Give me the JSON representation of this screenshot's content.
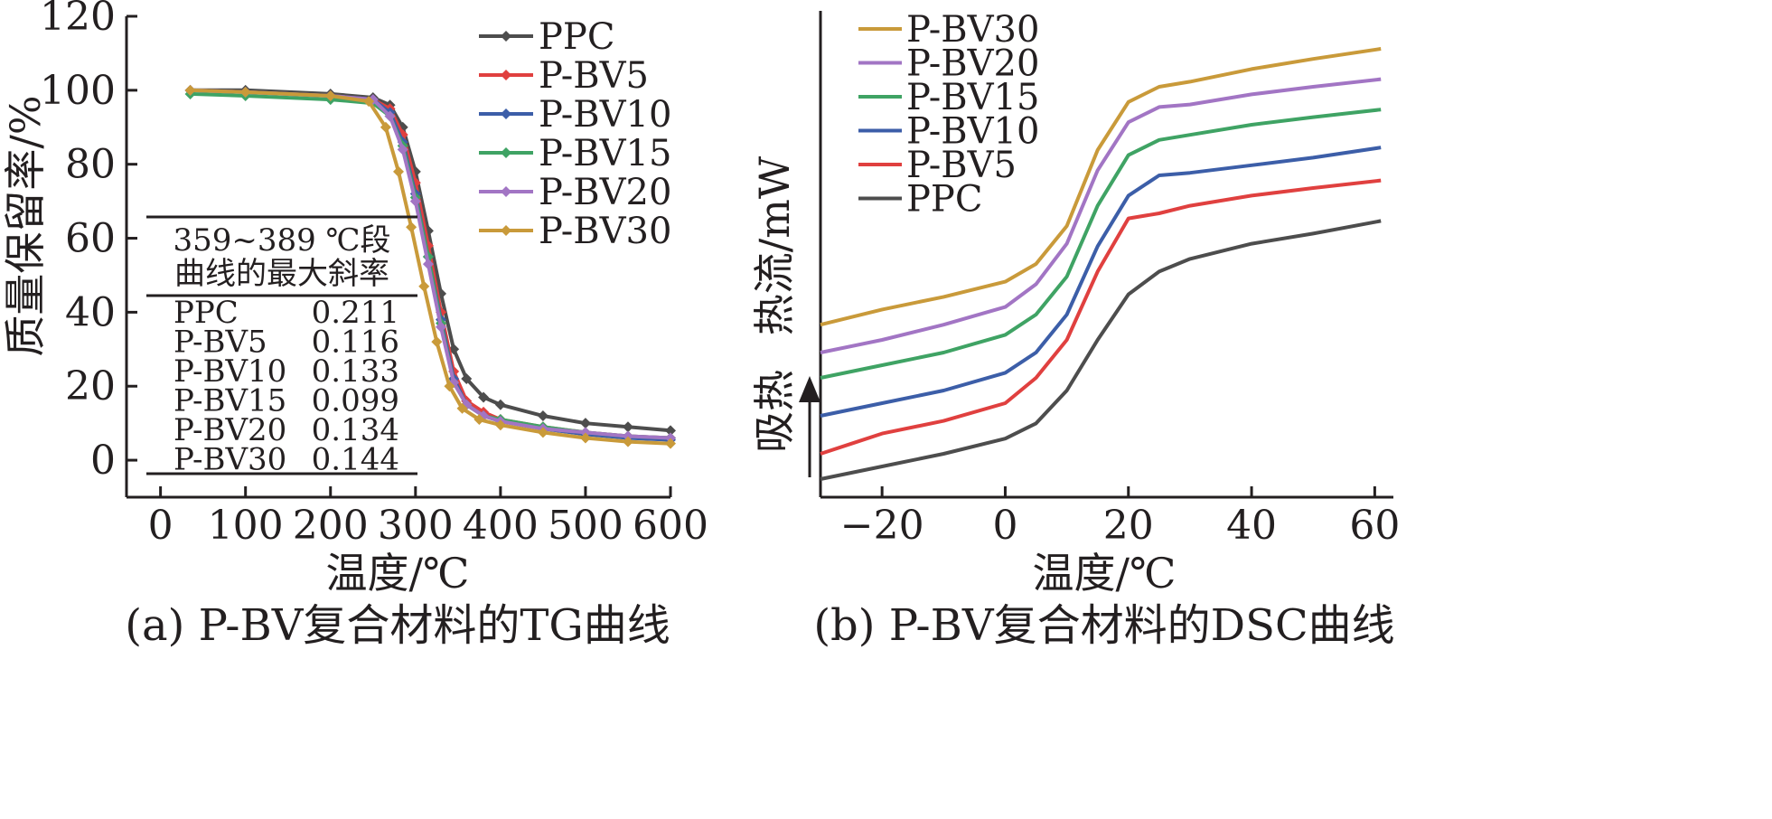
{
  "chart_data": [
    {
      "type": "line",
      "caption": "(a) P-BV复合材料的TG曲线",
      "xlabel": "温度/℃",
      "ylabel": "质量保留率/%",
      "xlim": [
        -40,
        600
      ],
      "ylim": [
        -10,
        120
      ],
      "xticks": [
        0,
        100,
        200,
        300,
        400,
        500,
        600
      ],
      "yticks": [
        0,
        20,
        40,
        60,
        80,
        100,
        120
      ],
      "legend_position": "top-right",
      "series": [
        {
          "name": "PPC",
          "color": "#4d4d4d",
          "x": [
            35,
            100,
            200,
            250,
            270,
            285,
            300,
            315,
            330,
            345,
            360,
            380,
            400,
            450,
            500,
            550,
            600
          ],
          "y": [
            100,
            100,
            99,
            98,
            96,
            90,
            78,
            62,
            45,
            30,
            22,
            17,
            15,
            12,
            10,
            9,
            8
          ]
        },
        {
          "name": "P-BV5",
          "color": "#e0403f",
          "x": [
            35,
            100,
            200,
            250,
            270,
            285,
            300,
            315,
            330,
            345,
            360,
            380,
            400,
            450,
            500,
            550,
            600
          ],
          "y": [
            100,
            99.5,
            98.5,
            97.5,
            95,
            88,
            75,
            58,
            40,
            24,
            16,
            13,
            11,
            9,
            7.5,
            6.5,
            6
          ]
        },
        {
          "name": "P-BV10",
          "color": "#3c5ea8",
          "x": [
            35,
            100,
            200,
            250,
            270,
            285,
            300,
            315,
            330,
            345,
            360,
            380,
            400,
            450,
            500,
            550,
            600
          ],
          "y": [
            100,
            99.5,
            98.5,
            97.5,
            94,
            86,
            72,
            55,
            38,
            22,
            15,
            12,
            10.5,
            8.5,
            7,
            6,
            5.5
          ]
        },
        {
          "name": "P-BV15",
          "color": "#3fa364",
          "x": [
            35,
            100,
            200,
            250,
            270,
            285,
            300,
            315,
            330,
            345,
            360,
            380,
            400,
            450,
            500,
            550,
            600
          ],
          "y": [
            99,
            98.5,
            97.5,
            96.5,
            93,
            85,
            71,
            55,
            37,
            21,
            15,
            12,
            11,
            9,
            7.5,
            6.5,
            6
          ]
        },
        {
          "name": "P-BV20",
          "color": "#a275c4",
          "x": [
            35,
            100,
            200,
            250,
            270,
            285,
            300,
            315,
            330,
            345,
            360,
            380,
            400,
            450,
            500,
            550,
            600
          ],
          "y": [
            100,
            99.5,
            98.5,
            97.5,
            93,
            84,
            70,
            53,
            36,
            21,
            15,
            12,
            10.5,
            8.5,
            7.5,
            6.5,
            6
          ]
        },
        {
          "name": "P-BV30",
          "color": "#c99a3a",
          "x": [
            35,
            100,
            200,
            245,
            265,
            280,
            295,
            310,
            325,
            340,
            355,
            375,
            400,
            450,
            500,
            550,
            600
          ],
          "y": [
            100,
            99.5,
            98.5,
            97,
            90,
            78,
            63,
            47,
            32,
            20,
            14,
            11,
            9.5,
            7.5,
            6,
            5,
            4.5
          ]
        }
      ],
      "inset_table": {
        "title_line1": "359~389 ℃段",
        "title_line2": "曲线的最大斜率",
        "rows": [
          {
            "name": "PPC",
            "value": "0.211"
          },
          {
            "name": "P-BV5",
            "value": "0.116"
          },
          {
            "name": "P-BV10",
            "value": "0.133"
          },
          {
            "name": "P-BV15",
            "value": "0.099"
          },
          {
            "name": "P-BV20",
            "value": "0.134"
          },
          {
            "name": "P-BV30",
            "value": "0.144"
          }
        ]
      }
    },
    {
      "type": "line",
      "caption": "(b) P-BV复合材料的DSC曲线",
      "xlabel": "温度/℃",
      "ylabel": "热流/mW",
      "ylabel_note": "吸热",
      "xlim": [
        -30,
        62
      ],
      "xticks": [
        -20,
        0,
        20,
        40,
        60
      ],
      "y_ticks_shown": false,
      "legend_position": "top-left",
      "legend_order": [
        "P-BV30",
        "P-BV20",
        "P-BV15",
        "P-BV10",
        "P-BV5",
        "PPC"
      ],
      "series": [
        {
          "name": "PPC",
          "color": "#4d4d4d",
          "x": [
            -30,
            -20,
            -10,
            0,
            5,
            10,
            15,
            20,
            25,
            30,
            40,
            50,
            61
          ],
          "y": [
            0,
            5,
            10,
            16,
            22,
            35,
            55,
            73,
            82,
            87,
            93,
            97,
            102
          ]
        },
        {
          "name": "P-BV5",
          "color": "#e0403f",
          "x": [
            -30,
            -25,
            -20,
            -10,
            0,
            5,
            10,
            15,
            20,
            25,
            30,
            40,
            50,
            61
          ],
          "y": [
            10,
            14,
            18,
            23,
            30,
            40,
            55,
            82,
            103,
            105,
            108,
            112,
            115,
            118
          ]
        },
        {
          "name": "P-BV10",
          "color": "#3c5ea8",
          "x": [
            -30,
            -20,
            -10,
            0,
            5,
            10,
            15,
            20,
            25,
            30,
            40,
            50,
            61
          ],
          "y": [
            25,
            30,
            35,
            42,
            50,
            65,
            92,
            112,
            120,
            121,
            124,
            127,
            131
          ]
        },
        {
          "name": "P-BV15",
          "color": "#3fa364",
          "x": [
            -30,
            -20,
            -10,
            0,
            5,
            10,
            15,
            20,
            25,
            30,
            40,
            50,
            61
          ],
          "y": [
            40,
            45,
            50,
            57,
            65,
            80,
            108,
            128,
            134,
            136,
            140,
            143,
            146
          ]
        },
        {
          "name": "P-BV20",
          "color": "#a275c4",
          "x": [
            -30,
            -20,
            -10,
            0,
            5,
            10,
            15,
            20,
            25,
            30,
            40,
            50,
            61
          ],
          "y": [
            50,
            55,
            61,
            68,
            77,
            93,
            122,
            141,
            147,
            148,
            152,
            155,
            158
          ]
        },
        {
          "name": "P-BV30",
          "color": "#c99a3a",
          "x": [
            -30,
            -20,
            -10,
            0,
            5,
            10,
            15,
            20,
            25,
            30,
            40,
            50,
            61
          ],
          "y": [
            61,
            67,
            72,
            78,
            85,
            100,
            130,
            149,
            155,
            157,
            162,
            166,
            170
          ]
        }
      ]
    }
  ]
}
